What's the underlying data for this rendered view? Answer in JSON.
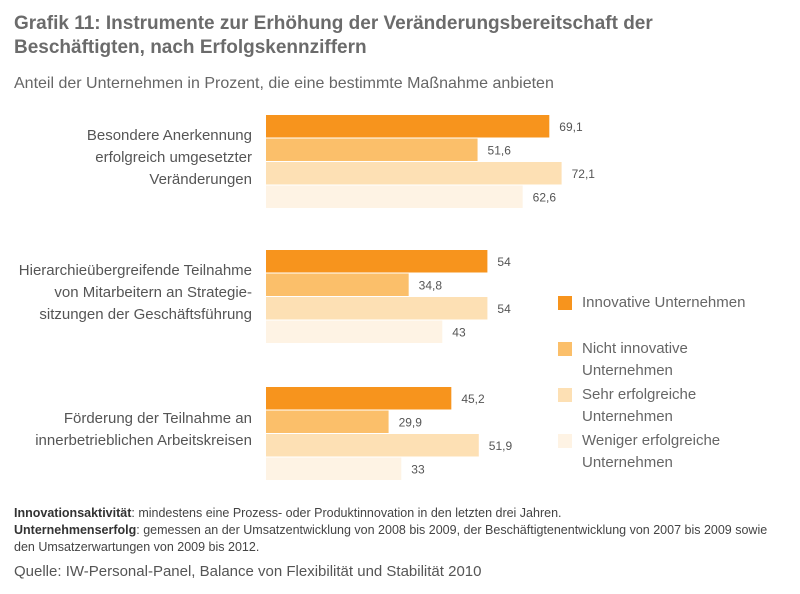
{
  "chart_data": {
    "type": "bar",
    "orientation": "horizontal",
    "title": "Grafik 11: Instrumente zur Erhöhung der Veränderungsbereitschaft der Beschäftigten, nach Erfolgskennziffern",
    "subtitle": "Anteil der Unternehmen in Prozent, die eine bestimmte Maßnahme anbieten",
    "categories": [
      "Besondere Anerkennung\nerfolgreich umgesetzter\nVeränderungen",
      "Hierarchieübergreifende Teilnahme\nvon Mitarbeitern an Strategie-\nsitzungen der Geschäftsführung",
      "Förderung der Teilnahme an\ninnerbetrieblichen Arbeitskreisen"
    ],
    "series": [
      {
        "name": "Innovative Unternehmen",
        "color": "#f7941d",
        "values": [
          69.1,
          54,
          45.2
        ],
        "labels": [
          "69,1",
          "54",
          "45,2"
        ]
      },
      {
        "name": "Nicht innovative Unternehmen",
        "color": "#fbbf6a",
        "values": [
          51.6,
          34.8,
          29.9
        ],
        "labels": [
          "51,6",
          "34,8",
          "29,9"
        ]
      },
      {
        "name": "Sehr erfolgreiche Unternehmen",
        "color": "#fde0b4",
        "values": [
          72.1,
          54,
          51.9
        ],
        "labels": [
          "72,1",
          "54",
          "51,9"
        ]
      },
      {
        "name": "Weniger erfolgreiche Unternehmen",
        "color": "#fef3e4",
        "values": [
          62.6,
          43,
          33
        ],
        "labels": [
          "62,6",
          "43",
          "33"
        ]
      }
    ],
    "xlim": [
      0,
      100
    ],
    "grid": false,
    "legend_position": "right"
  },
  "notes": {
    "line1_bold": "Innovationsaktivität",
    "line1_text": ": mindestens eine Prozess- oder Produktinnovation in den letzten drei Jahren.",
    "line2_bold": "Unternehmenserfolg",
    "line2_text": ": gemessen an der Umsatzentwicklung von 2008 bis 2009, der Beschäftigtenentwicklung von 2007 bis 2009 sowie den Umsatzerwartungen von 2009 bis 2012."
  },
  "source": "Quelle: IW-Personal-Panel, Balance von Flexibilität und Stabilität 2010"
}
